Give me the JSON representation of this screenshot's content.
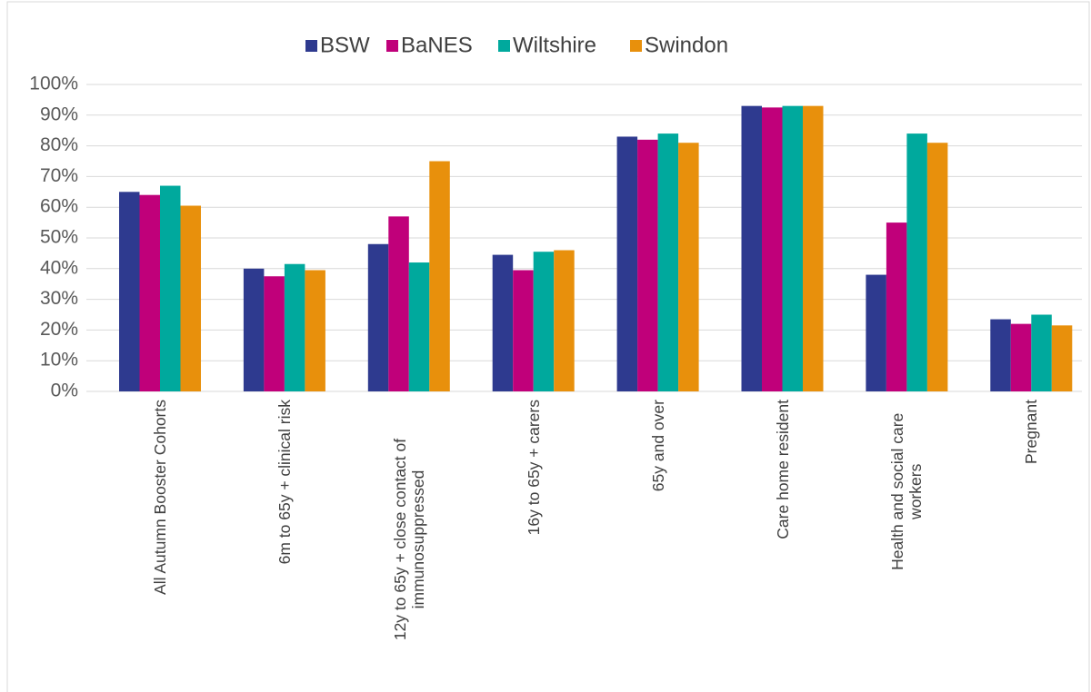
{
  "chart_data": {
    "type": "bar",
    "categories": [
      "All Autumn Booster Cohorts",
      "6m to 65y + clinical risk",
      "12y to 65y + close contact of immunosuppressed",
      "16y to 65y + carers",
      "65y and over",
      "Care home resident",
      "Health and social care workers",
      "Pregnant"
    ],
    "series": [
      {
        "name": "BSW",
        "color": "#2e3a8f",
        "values": [
          65,
          40,
          48,
          44.5,
          83,
          93,
          38,
          23.5
        ]
      },
      {
        "name": "BaNES",
        "color": "#c0007a",
        "values": [
          64,
          37.5,
          57,
          39.5,
          82,
          92.5,
          55,
          22
        ]
      },
      {
        "name": "Wiltshire",
        "color": "#00a99d",
        "values": [
          67,
          41.5,
          42,
          45.5,
          84,
          93,
          84,
          25
        ]
      },
      {
        "name": "Swindon",
        "color": "#e8900c",
        "values": [
          60.5,
          39.5,
          75,
          46,
          81,
          93,
          81,
          21.5
        ]
      }
    ],
    "ylim": [
      0,
      100
    ],
    "yticks": [
      {
        "value": 0,
        "label": "0%"
      },
      {
        "value": 10,
        "label": "10%"
      },
      {
        "value": 20,
        "label": "20%"
      },
      {
        "value": 30,
        "label": "30%"
      },
      {
        "value": 40,
        "label": "40%"
      },
      {
        "value": 50,
        "label": "50%"
      },
      {
        "value": 60,
        "label": "60%"
      },
      {
        "value": 70,
        "label": "70%"
      },
      {
        "value": 80,
        "label": "80%"
      },
      {
        "value": 90,
        "label": "90%"
      },
      {
        "value": 100,
        "label": "100%"
      }
    ],
    "grid": true,
    "legend": "top"
  }
}
